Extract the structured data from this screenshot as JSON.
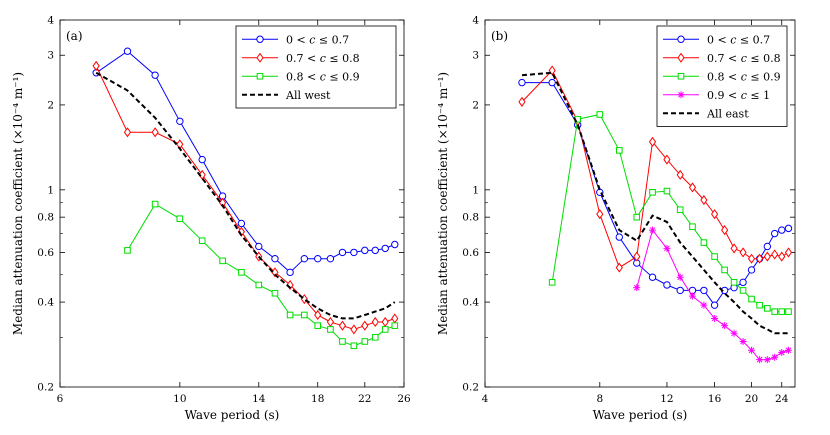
{
  "chart_data": [
    {
      "type": "line",
      "panel_label": "(a)",
      "xlabel": "Wave period (s)",
      "ylabel": "Median attenuation coefficient (×10⁻⁴ m⁻¹)",
      "xscale": "log",
      "yscale": "log",
      "xlim": [
        6,
        26
      ],
      "ylim": [
        0.2,
        4
      ],
      "xticks": [
        6,
        10,
        14,
        18,
        22,
        26
      ],
      "xtick_labels": [
        "6",
        "10",
        "14",
        "18",
        "22",
        "26"
      ],
      "yticks": [
        0.2,
        0.4,
        0.6,
        0.8,
        1,
        2,
        3,
        4
      ],
      "ytick_labels": [
        "0.2",
        "0.4",
        "0.6",
        "0.8",
        "1",
        "2",
        "3",
        "4"
      ],
      "legend_position": "top-right",
      "series": [
        {
          "name": "0 < c ≤ 0.7",
          "color": "#0000ff",
          "marker": "circle",
          "dashed": false,
          "x": [
            7,
            8,
            9,
            10,
            11,
            12,
            13,
            14,
            15,
            16,
            17,
            18,
            19,
            20,
            21,
            22,
            23,
            24,
            25
          ],
          "y": [
            2.6,
            3.1,
            2.55,
            1.75,
            1.28,
            0.95,
            0.76,
            0.63,
            0.57,
            0.51,
            0.57,
            0.57,
            0.57,
            0.6,
            0.6,
            0.61,
            0.61,
            0.62,
            0.64
          ]
        },
        {
          "name": "0.7 < c ≤ 0.8",
          "color": "#ff0000",
          "marker": "diamond",
          "dashed": false,
          "x": [
            7,
            8,
            9,
            10,
            11,
            12,
            13,
            14,
            15,
            16,
            17,
            18,
            19,
            20,
            21,
            22,
            23,
            24,
            25
          ],
          "y": [
            2.75,
            1.6,
            1.6,
            1.45,
            1.13,
            0.9,
            0.71,
            0.58,
            0.51,
            0.46,
            0.41,
            0.36,
            0.34,
            0.33,
            0.32,
            0.33,
            0.34,
            0.34,
            0.35
          ]
        },
        {
          "name": "0.8 < c ≤ 0.9",
          "color": "#00dd00",
          "marker": "square",
          "dashed": false,
          "x": [
            8,
            9,
            10,
            11,
            12,
            13,
            14,
            15,
            16,
            17,
            18,
            19,
            20,
            21,
            22,
            23,
            24,
            25
          ],
          "y": [
            0.61,
            0.89,
            0.79,
            0.66,
            0.56,
            0.51,
            0.46,
            0.43,
            0.36,
            0.36,
            0.33,
            0.32,
            0.29,
            0.28,
            0.29,
            0.3,
            0.32,
            0.33
          ]
        },
        {
          "name": "All west",
          "color": "#000000",
          "marker": "none",
          "dashed": true,
          "x": [
            7,
            8,
            9,
            10,
            11,
            12,
            13,
            14,
            15,
            16,
            17,
            18,
            19,
            20,
            21,
            22,
            23,
            24,
            25
          ],
          "y": [
            2.6,
            2.25,
            1.8,
            1.4,
            1.1,
            0.88,
            0.69,
            0.58,
            0.5,
            0.45,
            0.41,
            0.38,
            0.36,
            0.35,
            0.35,
            0.36,
            0.37,
            0.38,
            0.4
          ]
        }
      ]
    },
    {
      "type": "line",
      "panel_label": "(b)",
      "xlabel": "Wave period (s)",
      "ylabel": "Median attenuation coefficient (×10⁻⁴ m⁻¹)",
      "xscale": "log",
      "yscale": "log",
      "xlim": [
        4,
        26
      ],
      "ylim": [
        0.2,
        4
      ],
      "xticks": [
        4,
        8,
        12,
        16,
        20,
        24
      ],
      "xtick_labels": [
        "4",
        "8",
        "12",
        "16",
        "20",
        "24"
      ],
      "yticks": [
        0.2,
        0.4,
        0.6,
        0.8,
        1,
        2,
        3,
        4
      ],
      "ytick_labels": [
        "0.2",
        "0.4",
        "0.6",
        "0.8",
        "1",
        "2",
        "3",
        "4"
      ],
      "legend_position": "top-right",
      "series": [
        {
          "name": "0 < c ≤ 0.7",
          "color": "#0000ff",
          "marker": "circle",
          "dashed": false,
          "x": [
            5,
            6,
            7,
            8,
            9,
            10,
            11,
            12,
            13,
            14,
            15,
            16,
            17,
            18,
            19,
            20,
            21,
            22,
            23,
            24,
            25
          ],
          "y": [
            2.4,
            2.4,
            1.7,
            0.98,
            0.68,
            0.55,
            0.49,
            0.46,
            0.44,
            0.44,
            0.44,
            0.39,
            0.44,
            0.45,
            0.47,
            0.52,
            0.57,
            0.63,
            0.7,
            0.72,
            0.73
          ]
        },
        {
          "name": "0.7 < c ≤ 0.8",
          "color": "#ff0000",
          "marker": "diamond",
          "dashed": false,
          "x": [
            5,
            6,
            7,
            8,
            9,
            10,
            11,
            12,
            13,
            14,
            15,
            16,
            17,
            18,
            19,
            20,
            21,
            22,
            23,
            24,
            25
          ],
          "y": [
            2.05,
            2.65,
            1.75,
            0.82,
            0.53,
            0.58,
            1.48,
            1.28,
            1.13,
            1.02,
            0.92,
            0.82,
            0.72,
            0.62,
            0.6,
            0.57,
            0.57,
            0.58,
            0.59,
            0.58,
            0.6
          ]
        },
        {
          "name": "0.8 < c ≤ 0.9",
          "color": "#00dd00",
          "marker": "square",
          "dashed": false,
          "x": [
            6,
            7,
            8,
            9,
            10,
            11,
            12,
            13,
            14,
            15,
            16,
            17,
            18,
            19,
            20,
            21,
            22,
            23,
            24,
            25
          ],
          "y": [
            0.47,
            1.78,
            1.85,
            1.38,
            0.8,
            0.98,
            0.99,
            0.85,
            0.74,
            0.65,
            0.58,
            0.52,
            0.47,
            0.44,
            0.41,
            0.39,
            0.38,
            0.37,
            0.37,
            0.37
          ]
        },
        {
          "name": "0.9 < c ≤ 1",
          "color": "#ff00ff",
          "marker": "star",
          "dashed": false,
          "x": [
            10,
            11,
            12,
            13,
            14,
            15,
            16,
            17,
            18,
            19,
            20,
            21,
            22,
            23,
            24,
            25
          ],
          "y": [
            0.45,
            0.72,
            0.62,
            0.49,
            0.42,
            0.39,
            0.35,
            0.33,
            0.31,
            0.29,
            0.27,
            0.25,
            0.25,
            0.255,
            0.265,
            0.27
          ]
        },
        {
          "name": "All east",
          "color": "#000000",
          "marker": "none",
          "dashed": true,
          "x": [
            5,
            6,
            7,
            8,
            9,
            10,
            11,
            12,
            13,
            14,
            15,
            16,
            17,
            18,
            19,
            20,
            21,
            22,
            23,
            24,
            25
          ],
          "y": [
            2.55,
            2.6,
            1.7,
            1.0,
            0.72,
            0.66,
            0.81,
            0.77,
            0.65,
            0.58,
            0.52,
            0.47,
            0.43,
            0.4,
            0.37,
            0.35,
            0.33,
            0.32,
            0.31,
            0.31,
            0.31
          ]
        }
      ]
    }
  ]
}
